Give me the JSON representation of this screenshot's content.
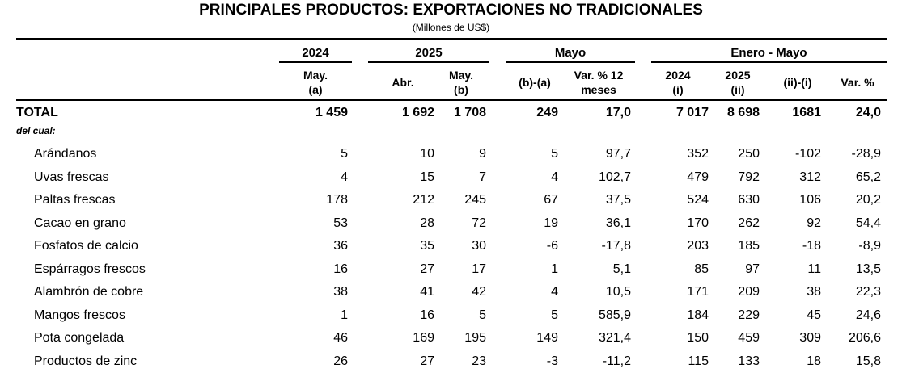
{
  "title": "PRINCIPALES PRODUCTOS: EXPORTACIONES NO TRADICIONALES",
  "subtitle": "(Millones de US$)",
  "groups": {
    "y2024": "2024",
    "y2025": "2025",
    "mayo": "Mayo",
    "enero_mayo": "Enero - Mayo"
  },
  "columns": {
    "may_a": [
      "May.",
      "(a)"
    ],
    "abr": [
      "Abr."
    ],
    "may_b": [
      "May.",
      "(b)"
    ],
    "diff": [
      "(b)-(a)"
    ],
    "var12": [
      "Var. % 12",
      "meses"
    ],
    "em2024": [
      "2024",
      "(i)"
    ],
    "em2025": [
      "2025",
      "(ii)"
    ],
    "emdiff": [
      "(ii)-(i)"
    ],
    "emvar": [
      "Var. %"
    ]
  },
  "total": {
    "label": "TOTAL",
    "values": [
      "1 459",
      "1 692",
      "1 708",
      "249",
      "17,0",
      "7 017",
      "8 698",
      "1681",
      "24,0"
    ]
  },
  "del_cual": "del cual:",
  "rows": [
    {
      "label": "Arándanos",
      "values": [
        "5",
        "10",
        "9",
        "5",
        "97,7",
        "352",
        "250",
        "-102",
        "-28,9"
      ]
    },
    {
      "label": "Uvas frescas",
      "values": [
        "4",
        "15",
        "7",
        "4",
        "102,7",
        "479",
        "792",
        "312",
        "65,2"
      ]
    },
    {
      "label": "Paltas frescas",
      "values": [
        "178",
        "212",
        "245",
        "67",
        "37,5",
        "524",
        "630",
        "106",
        "20,2"
      ]
    },
    {
      "label": "Cacao en grano",
      "values": [
        "53",
        "28",
        "72",
        "19",
        "36,1",
        "170",
        "262",
        "92",
        "54,4"
      ]
    },
    {
      "label": "Fosfatos de calcio",
      "values": [
        "36",
        "35",
        "30",
        "-6",
        "-17,8",
        "203",
        "185",
        "-18",
        "-8,9"
      ]
    },
    {
      "label": "Espárragos frescos",
      "values": [
        "16",
        "27",
        "17",
        "1",
        "5,1",
        "85",
        "97",
        "11",
        "13,5"
      ]
    },
    {
      "label": "Alambrón de cobre",
      "values": [
        "38",
        "41",
        "42",
        "4",
        "10,5",
        "171",
        "209",
        "38",
        "22,3"
      ]
    },
    {
      "label": "Mangos frescos",
      "values": [
        "1",
        "16",
        "5",
        "5",
        "585,9",
        "184",
        "229",
        "45",
        "24,6"
      ]
    },
    {
      "label": "Pota congelada",
      "values": [
        "46",
        "169",
        "195",
        "149",
        "321,4",
        "150",
        "459",
        "309",
        "206,6"
      ]
    },
    {
      "label": "Productos de zinc",
      "values": [
        "26",
        "27",
        "23",
        "-3",
        "-11,2",
        "115",
        "133",
        "18",
        "15,8"
      ]
    }
  ]
}
